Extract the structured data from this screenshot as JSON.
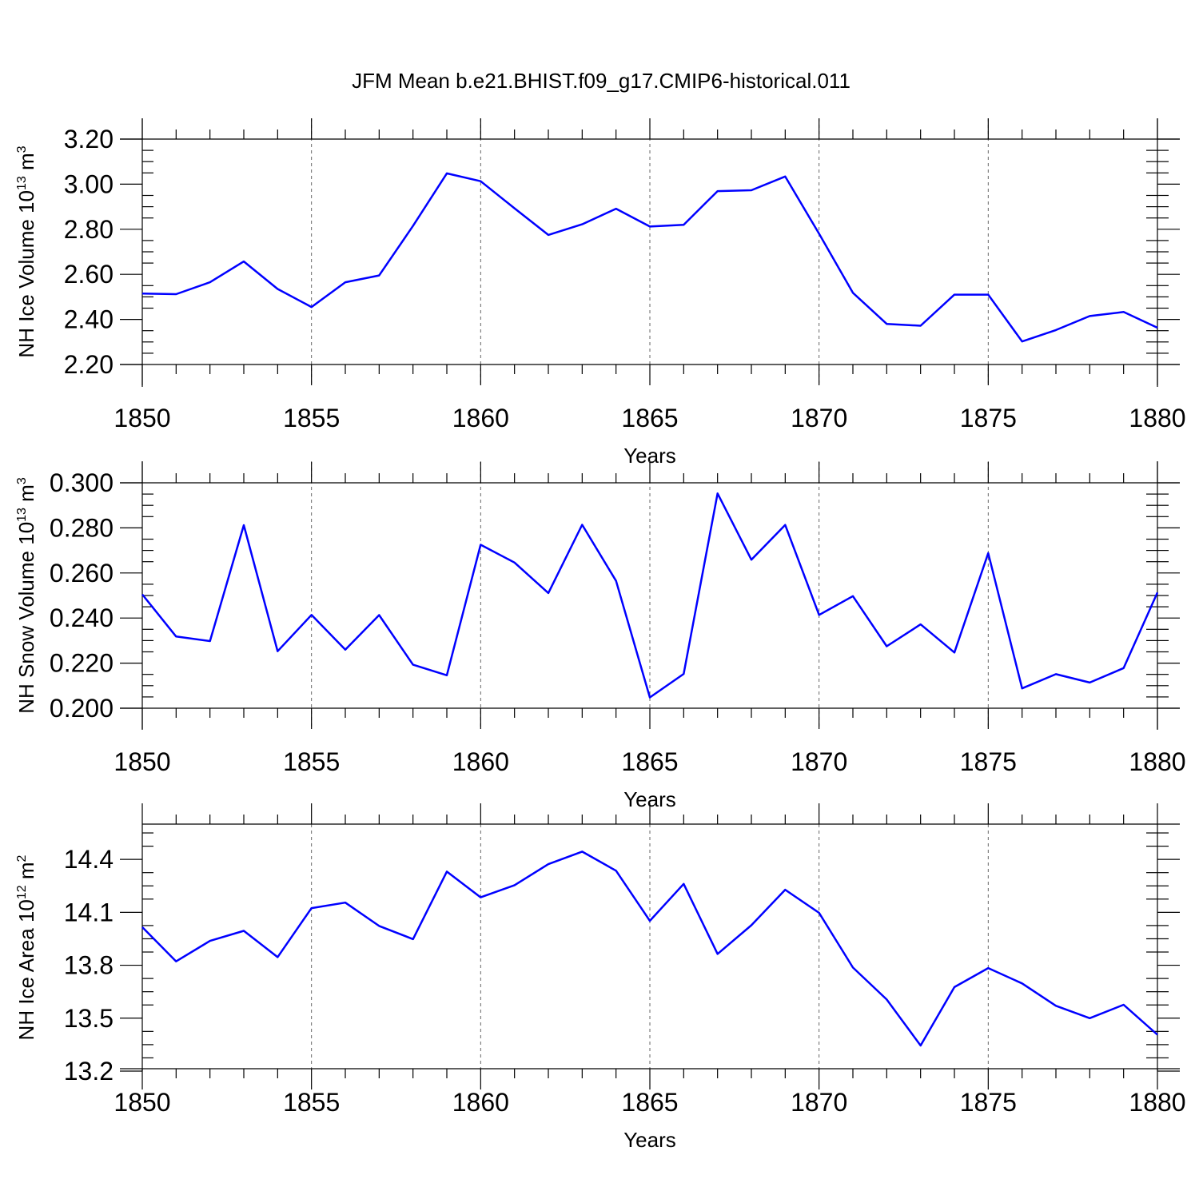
{
  "figure_title": "JFM Mean b.e21.BHIST.f09_g17.CMIP6-historical.011",
  "chart_data": [
    {
      "type": "line",
      "id": "ice-volume",
      "ylabel": "NH Ice Volume",
      "yunit_base": "10",
      "yunit_exp": "13",
      "yunit_suffix": "m",
      "yunit_suffix_exp": "3",
      "xlabel": "Years",
      "xlim": [
        1850,
        1880
      ],
      "ylim": [
        2.2,
        3.2
      ],
      "xticks": [
        1850,
        1855,
        1860,
        1865,
        1870,
        1875,
        1880
      ],
      "xtick_labels": [
        "1850",
        "1855",
        "1860",
        "1865",
        "1870",
        "1875",
        "1880"
      ],
      "yticks": [
        2.2,
        2.4,
        2.6,
        2.8,
        3.0,
        3.2
      ],
      "ytick_labels": [
        "2.20",
        "2.40",
        "2.60",
        "2.80",
        "3.00",
        "3.20"
      ],
      "x": [
        1850,
        1851,
        1852,
        1853,
        1854,
        1855,
        1856,
        1857,
        1858,
        1859,
        1860,
        1861,
        1862,
        1863,
        1864,
        1865,
        1866,
        1867,
        1868,
        1869,
        1870,
        1871,
        1872,
        1873,
        1874,
        1875,
        1876,
        1877,
        1878,
        1879,
        1880
      ],
      "values": [
        2.515,
        2.512,
        2.565,
        2.657,
        2.535,
        2.455,
        2.565,
        2.595,
        2.815,
        3.048,
        3.013,
        2.893,
        2.775,
        2.822,
        2.891,
        2.812,
        2.82,
        2.969,
        2.973,
        3.034,
        2.78,
        2.518,
        2.38,
        2.372,
        2.51,
        2.51,
        2.302,
        2.353,
        2.415,
        2.433,
        2.363
      ],
      "grid": "vertical dashed at major x ticks"
    },
    {
      "type": "line",
      "id": "snow-volume",
      "ylabel": "NH Snow Volume",
      "yunit_base": "10",
      "yunit_exp": "13",
      "yunit_suffix": "m",
      "yunit_suffix_exp": "3",
      "xlabel": "Years",
      "xlim": [
        1850,
        1880
      ],
      "ylim": [
        0.2,
        0.3
      ],
      "xticks": [
        1850,
        1855,
        1860,
        1865,
        1870,
        1875,
        1880
      ],
      "xtick_labels": [
        "1850",
        "1855",
        "1860",
        "1865",
        "1870",
        "1875",
        "1880"
      ],
      "yticks": [
        0.2,
        0.22,
        0.24,
        0.26,
        0.28,
        0.3
      ],
      "ytick_labels": [
        "0.200",
        "0.220",
        "0.240",
        "0.260",
        "0.280",
        "0.300"
      ],
      "x": [
        1850,
        1851,
        1852,
        1853,
        1854,
        1855,
        1856,
        1857,
        1858,
        1859,
        1860,
        1861,
        1862,
        1863,
        1864,
        1865,
        1866,
        1867,
        1868,
        1869,
        1870,
        1871,
        1872,
        1873,
        1874,
        1875,
        1876,
        1877,
        1878,
        1879,
        1880
      ],
      "values": [
        0.2505,
        0.2318,
        0.2298,
        0.2812,
        0.2253,
        0.2414,
        0.226,
        0.2413,
        0.2193,
        0.2146,
        0.2725,
        0.2646,
        0.2511,
        0.2814,
        0.2565,
        0.2048,
        0.2152,
        0.2953,
        0.2659,
        0.2813,
        0.2414,
        0.2497,
        0.2275,
        0.2372,
        0.2247,
        0.2688,
        0.2088,
        0.2151,
        0.2114,
        0.2178,
        0.2513
      ],
      "grid": "vertical dashed at major x ticks"
    },
    {
      "type": "line",
      "id": "ice-area",
      "ylabel": "NH Ice Area",
      "yunit_base": "10",
      "yunit_exp": "12",
      "yunit_suffix": "m",
      "yunit_suffix_exp": "2",
      "xlabel": "Years",
      "xlim": [
        1850,
        1880
      ],
      "ylim": [
        13.2,
        14.6
      ],
      "xticks": [
        1850,
        1855,
        1860,
        1865,
        1870,
        1875,
        1880
      ],
      "xtick_labels": [
        "1850",
        "1855",
        "1860",
        "1865",
        "1870",
        "1875",
        "1880"
      ],
      "yticks": [
        13.2,
        13.5,
        13.8,
        14.1,
        14.4
      ],
      "ytick_labels": [
        "13.2",
        "13.5",
        "13.8",
        "14.1",
        "14.4"
      ],
      "x": [
        1850,
        1851,
        1852,
        1853,
        1854,
        1855,
        1856,
        1857,
        1858,
        1859,
        1860,
        1861,
        1862,
        1863,
        1864,
        1865,
        1866,
        1867,
        1868,
        1869,
        1870,
        1871,
        1872,
        1873,
        1874,
        1875,
        1876,
        1877,
        1878,
        1879,
        1880
      ],
      "values": [
        14.016,
        13.822,
        13.938,
        13.995,
        13.846,
        14.124,
        14.155,
        14.023,
        13.948,
        14.331,
        14.185,
        14.254,
        14.373,
        14.444,
        14.336,
        14.052,
        14.261,
        13.864,
        14.027,
        14.228,
        14.097,
        13.787,
        13.606,
        13.345,
        13.676,
        13.784,
        13.697,
        13.57,
        13.5,
        13.576,
        13.406
      ],
      "grid": "vertical dashed at major x ticks"
    }
  ]
}
